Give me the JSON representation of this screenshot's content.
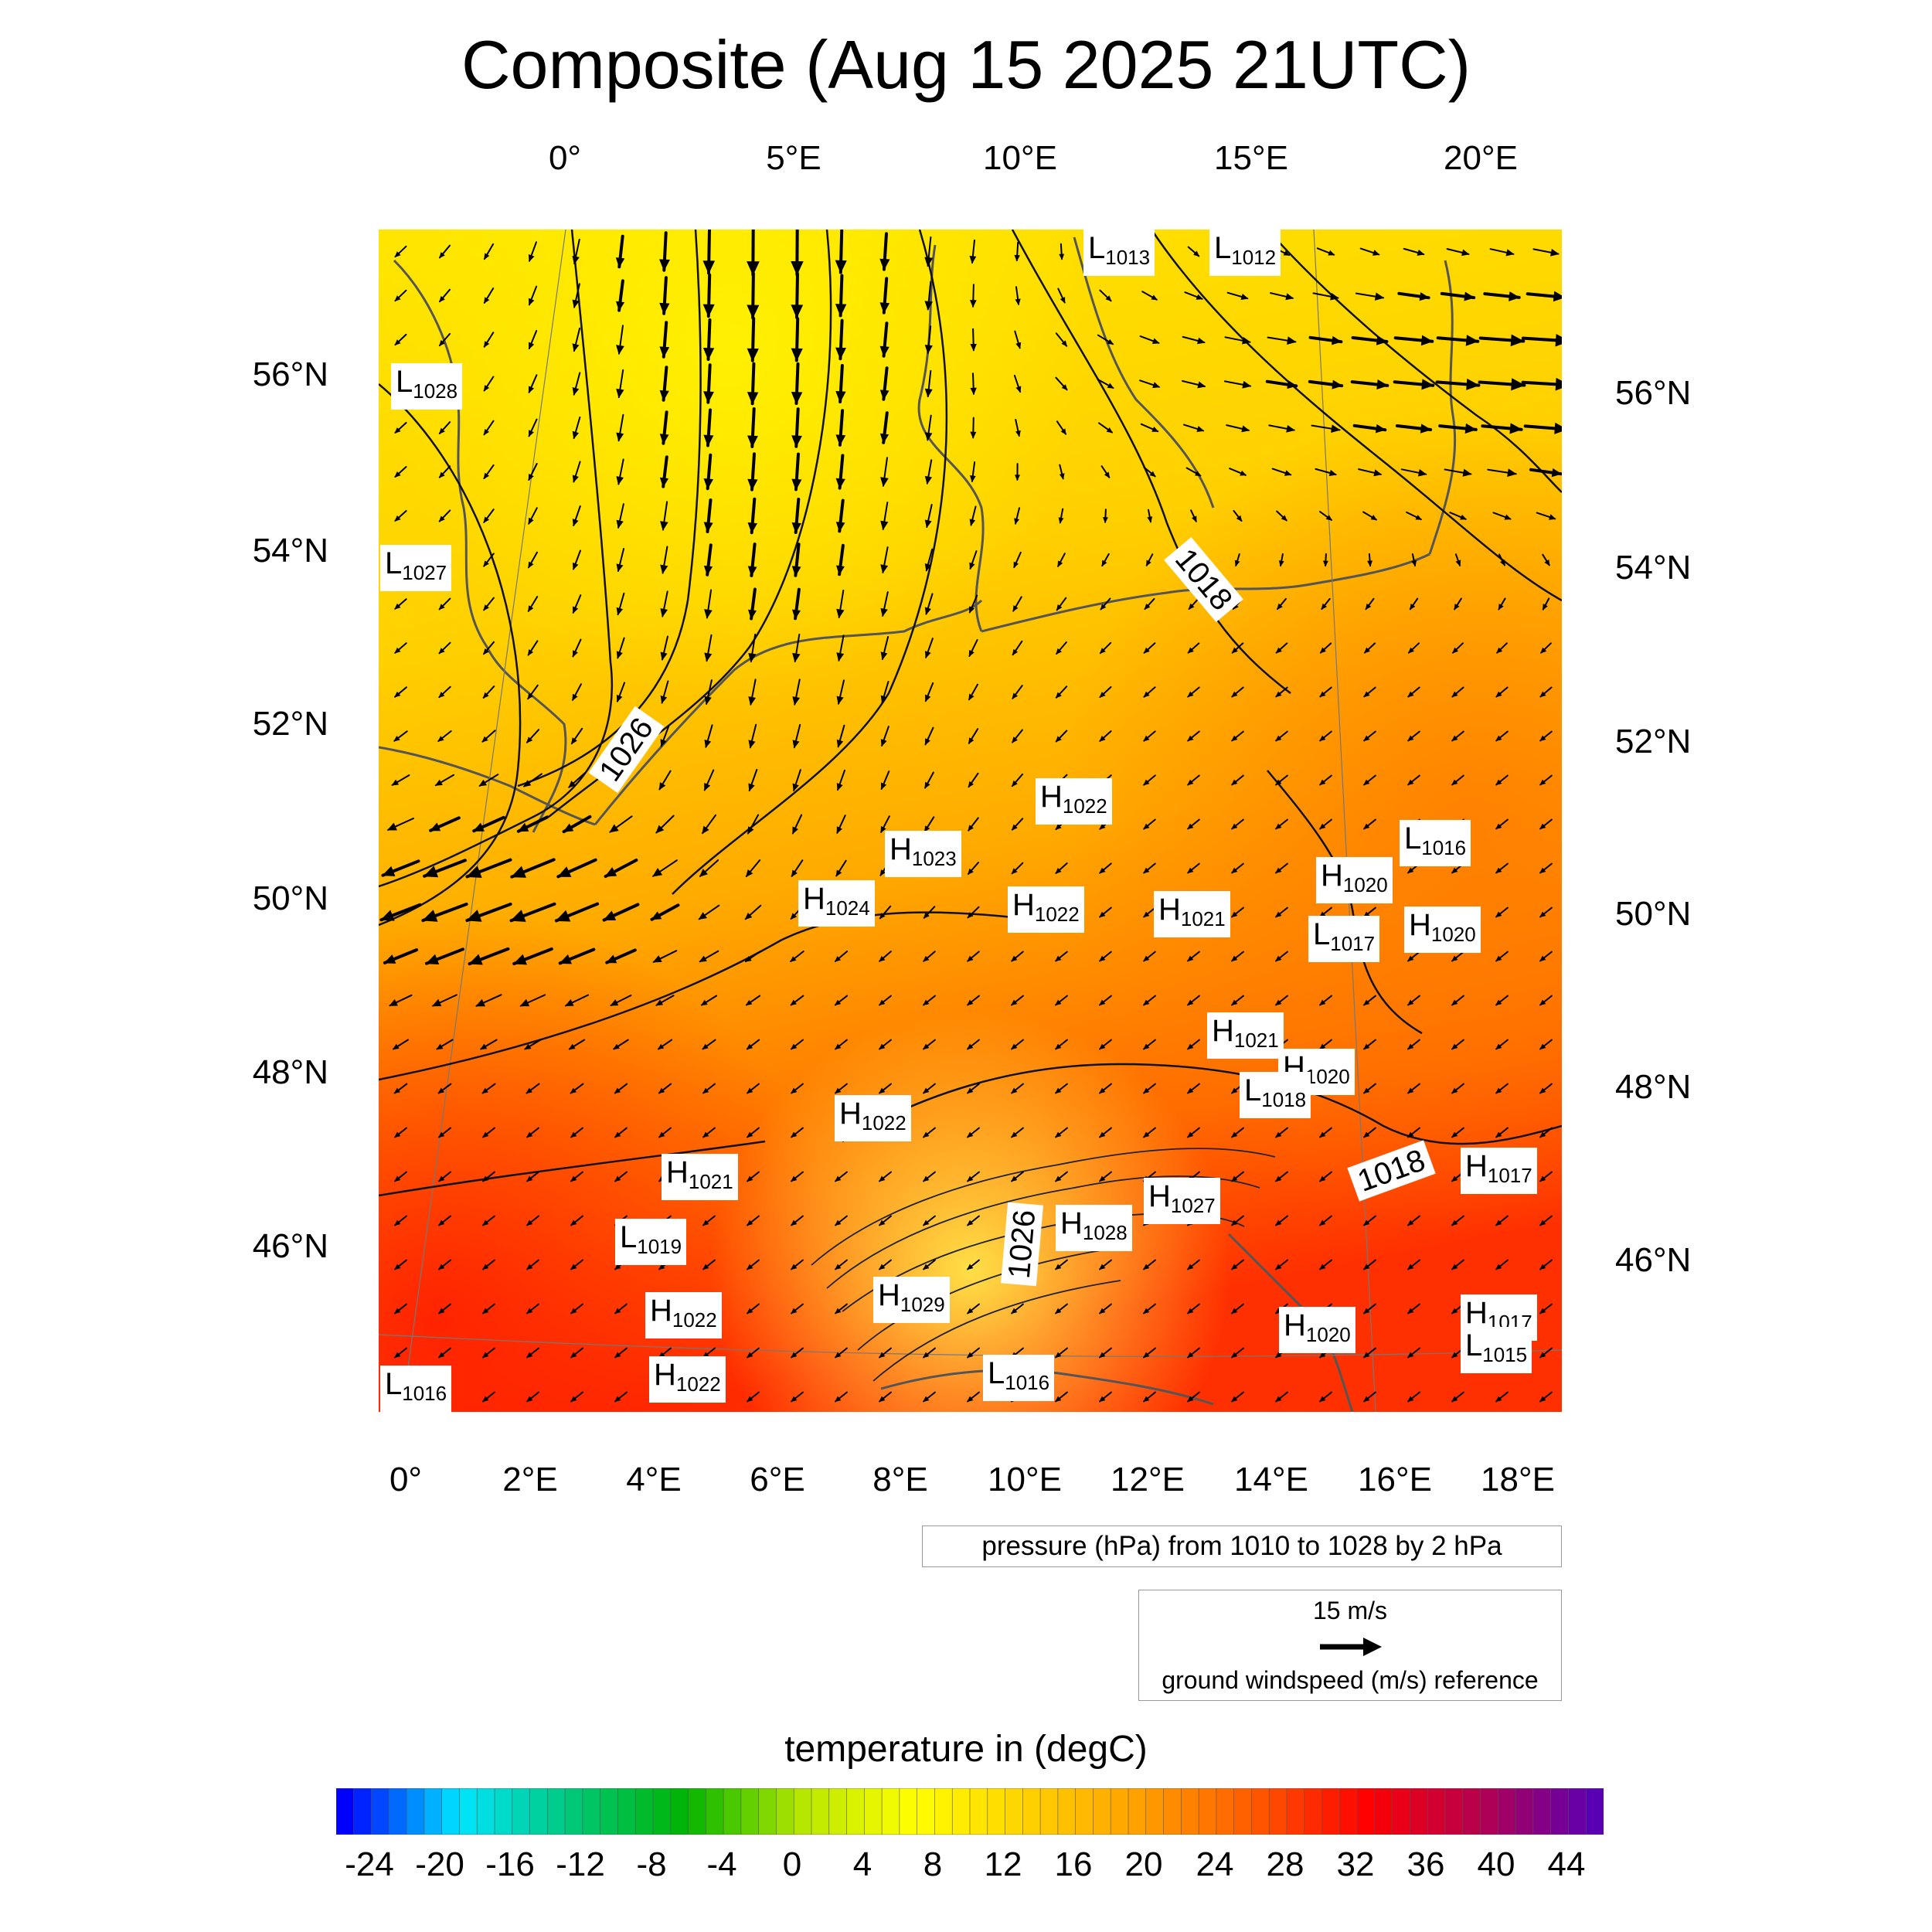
{
  "title": "Composite (Aug 15 2025 21UTC)",
  "top_lon_labels": [
    "0°",
    "5°E",
    "10°E",
    "15°E",
    "20°E"
  ],
  "bottom_lon_labels": [
    "0°",
    "2°E",
    "4°E",
    "6°E",
    "8°E",
    "10°E",
    "12°E",
    "14°E",
    "16°E",
    "18°E"
  ],
  "left_lat_labels": [
    "56°N",
    "54°N",
    "52°N",
    "50°N",
    "48°N",
    "46°N"
  ],
  "right_lat_labels": [
    "56°N",
    "54°N",
    "52°N",
    "50°N",
    "48°N",
    "46°N"
  ],
  "pressure_centers": [
    {
      "type": "L",
      "value": "1028"
    },
    {
      "type": "L",
      "value": "1027"
    },
    {
      "type": "L",
      "value": "1013"
    },
    {
      "type": "L",
      "value": "1012"
    },
    {
      "type": "H",
      "value": "1022"
    },
    {
      "type": "H",
      "value": "1023"
    },
    {
      "type": "H",
      "value": "1024"
    },
    {
      "type": "H",
      "value": "1022"
    },
    {
      "type": "H",
      "value": "1021"
    },
    {
      "type": "L",
      "value": "1016"
    },
    {
      "type": "H",
      "value": "1020"
    },
    {
      "type": "L",
      "value": "1017"
    },
    {
      "type": "H",
      "value": "1020"
    },
    {
      "type": "H",
      "value": "1021"
    },
    {
      "type": "H",
      "value": "1020"
    },
    {
      "type": "L",
      "value": "1018"
    },
    {
      "type": "H",
      "value": "1022"
    },
    {
      "type": "H",
      "value": "1021"
    },
    {
      "type": "L",
      "value": "1019"
    },
    {
      "type": "H",
      "value": "1027"
    },
    {
      "type": "H",
      "value": "1028"
    },
    {
      "type": "H",
      "value": "1029"
    },
    {
      "type": "H",
      "value": "1017"
    },
    {
      "type": "H",
      "value": "1017"
    },
    {
      "type": "L",
      "value": "1015"
    },
    {
      "type": "H",
      "value": "1020"
    },
    {
      "type": "L",
      "value": "1016"
    },
    {
      "type": "H",
      "value": "1022"
    },
    {
      "type": "H",
      "value": "1022"
    },
    {
      "type": "L",
      "value": "1016"
    }
  ],
  "isobar_labels": [
    "1026",
    "1018",
    "1018",
    "1026"
  ],
  "pressure_legend": "pressure (hPa) from 1010 to 1028 by 2 hPa",
  "wind_reference": {
    "value": "15 m/s",
    "label": "ground windspeed (m/s) reference"
  },
  "colorbar": {
    "title": "temperature in (degC)",
    "labels": [
      "-24",
      "-20",
      "-16",
      "-12",
      "-8",
      "-4",
      "0",
      "4",
      "8",
      "12",
      "16",
      "20",
      "24",
      "28",
      "32",
      "36",
      "40",
      "44"
    ],
    "colors": [
      "#0000ff",
      "#00e5ff",
      "#00c878",
      "#00b400",
      "#b4e600",
      "#ffff00",
      "#ffd200",
      "#ffa000",
      "#ff5a00",
      "#ff0000",
      "#b40050",
      "#5a00b4"
    ]
  }
}
